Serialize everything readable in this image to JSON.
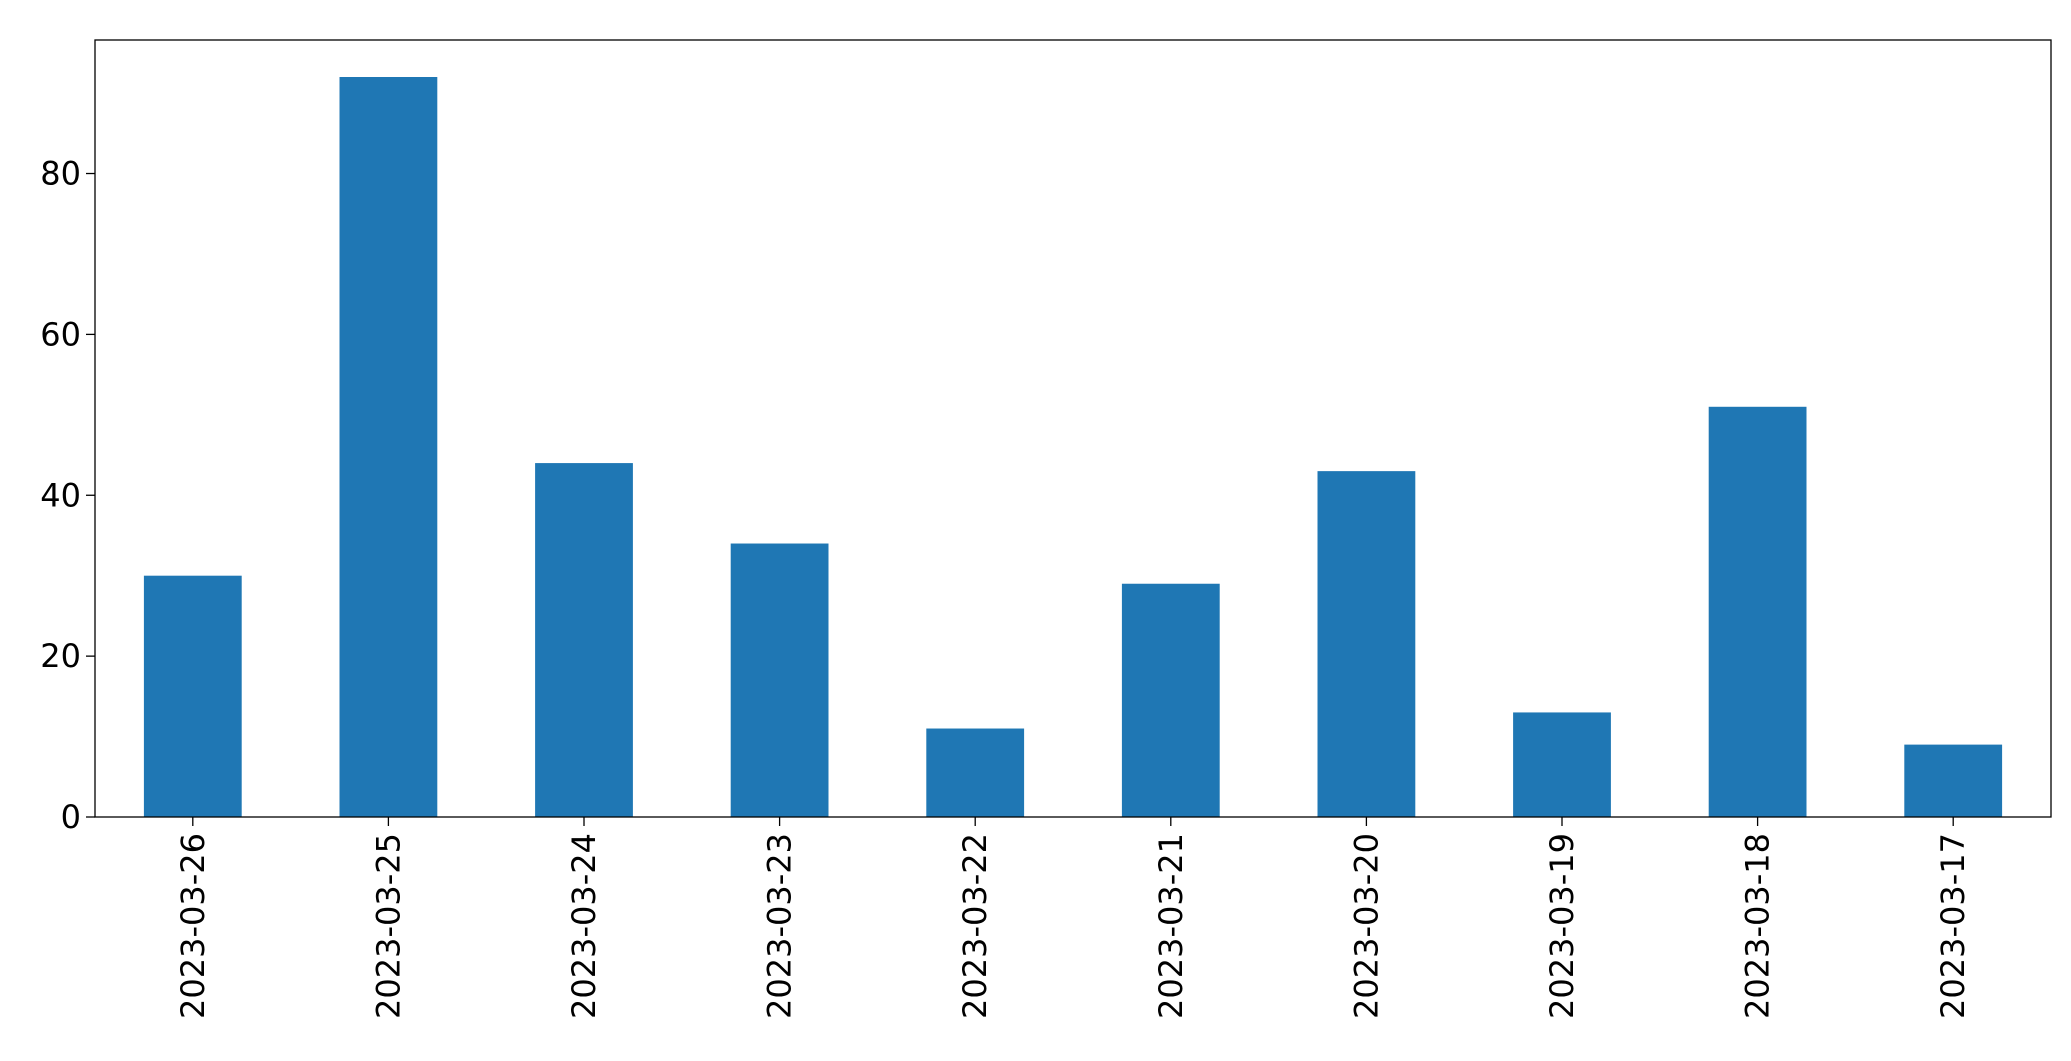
{
  "chart_data": {
    "type": "bar",
    "categories": [
      "2023-03-26",
      "2023-03-25",
      "2023-03-24",
      "2023-03-23",
      "2023-03-22",
      "2023-03-21",
      "2023-03-20",
      "2023-03-19",
      "2023-03-18",
      "2023-03-17"
    ],
    "values": [
      30,
      92,
      44,
      34,
      11,
      29,
      43,
      13,
      51,
      9
    ],
    "color": "#1f77b4",
    "ylim": [
      0,
      96.6
    ],
    "yticks": [
      0,
      20,
      40,
      60,
      80
    ],
    "grid": false
  }
}
